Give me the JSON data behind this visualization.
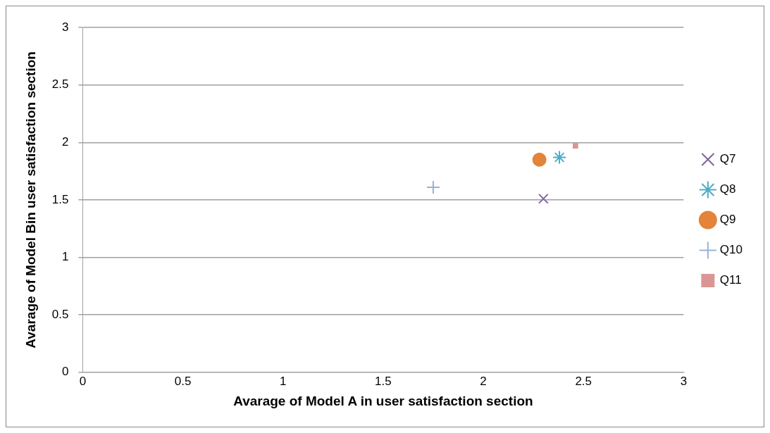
{
  "chart_data": {
    "type": "scatter",
    "xlabel": "Avarage of Model A in user satisfaction section",
    "ylabel": "Avarage of Model Bin user satisfaction section",
    "xlim": [
      0,
      3
    ],
    "ylim": [
      0,
      3
    ],
    "xticks": [
      0,
      0.5,
      1,
      1.5,
      2,
      2.5,
      3
    ],
    "yticks": [
      0,
      0.5,
      1,
      1.5,
      2,
      2.5,
      3
    ],
    "grid": "y",
    "legend": "right",
    "series": [
      {
        "name": "Q7",
        "color": "#7e649e",
        "marker": "x",
        "x": [
          2.3
        ],
        "values": [
          1.51
        ]
      },
      {
        "name": "Q8",
        "color": "#4bacc6",
        "x": [
          2.38
        ],
        "values": [
          1.87
        ]
      },
      {
        "name": "Q9",
        "color": "#e3843a",
        "marker": "circle",
        "x": [
          2.28
        ],
        "values": [
          1.85
        ]
      },
      {
        "name": "Q10",
        "color": "#95b3d7",
        "marker": "cross",
        "x": [
          1.75
        ],
        "values": [
          1.61
        ]
      },
      {
        "name": "Q11",
        "color": "#d99694",
        "marker": "square",
        "x": [
          2.46
        ],
        "values": [
          1.97
        ]
      }
    ]
  }
}
